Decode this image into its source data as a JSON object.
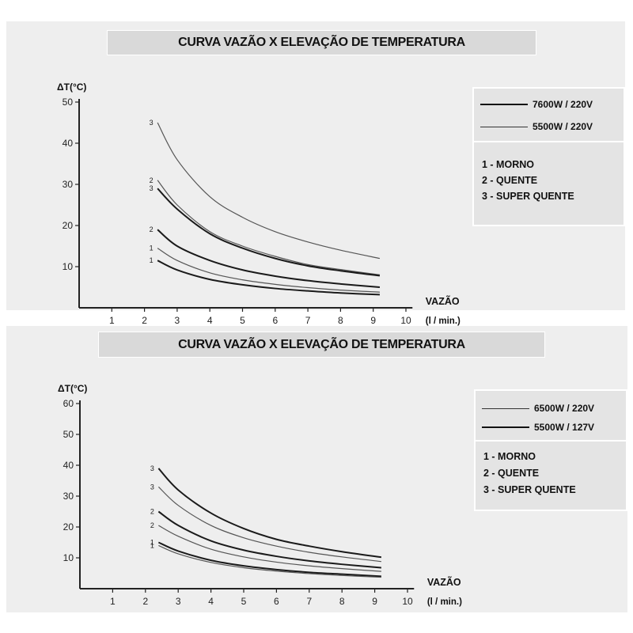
{
  "chart_data": [
    {
      "type": "line",
      "title": "CURVA VAZÃO X ELEVAÇÃO DE TEMPERATURA",
      "ylabel": "ΔT(°C)",
      "xlabel": "VAZÃO",
      "xlabel_unit": "(l / min.)",
      "xlim": [
        0,
        10
      ],
      "ylim": [
        0,
        50
      ],
      "xticks": [
        1,
        2,
        3,
        4,
        5,
        6,
        7,
        8,
        9,
        10
      ],
      "yticks": [
        10,
        20,
        30,
        40,
        50
      ],
      "legend_position": "top-right",
      "legend": [
        {
          "label": "7600W / 220V",
          "style": "thick"
        },
        {
          "label": "5500W / 220V",
          "style": "thin"
        }
      ],
      "legend_key": [
        "1 - MORNO",
        "2 - QUENTE",
        "3 - SUPER QUENTE"
      ],
      "series": [
        {
          "curve": "3",
          "style": "thin",
          "x": [
            2.4,
            3,
            4,
            5,
            6,
            7,
            8,
            9.2
          ],
          "y": [
            45,
            36,
            27,
            22,
            18.5,
            16,
            14,
            12
          ]
        },
        {
          "curve": "2",
          "style": "thin",
          "x": [
            2.4,
            3,
            4,
            5,
            6,
            7,
            8,
            9.2
          ],
          "y": [
            31,
            25,
            18.5,
            15,
            12.5,
            10.5,
            9.3,
            8
          ]
        },
        {
          "curve": "3",
          "style": "thick",
          "x": [
            2.4,
            3,
            4,
            5,
            6,
            7,
            8,
            9.2
          ],
          "y": [
            29,
            24,
            18,
            14.5,
            12,
            10.2,
            9,
            7.8
          ]
        },
        {
          "curve": "2",
          "style": "thick",
          "x": [
            2.4,
            3,
            4,
            5,
            6,
            7,
            8,
            9.2
          ],
          "y": [
            19,
            15,
            11.5,
            9.2,
            7.7,
            6.6,
            5.8,
            5
          ]
        },
        {
          "curve": "1",
          "style": "thin",
          "x": [
            2.4,
            3,
            4,
            5,
            6,
            7,
            8,
            9.2
          ],
          "y": [
            14.5,
            11.5,
            8.5,
            6.8,
            5.7,
            4.9,
            4.3,
            3.8
          ]
        },
        {
          "curve": "1",
          "style": "thick",
          "x": [
            2.4,
            3,
            4,
            5,
            6,
            7,
            8,
            9.2
          ],
          "y": [
            11.5,
            9.2,
            6.9,
            5.6,
            4.7,
            4.1,
            3.6,
            3.2
          ]
        }
      ]
    },
    {
      "type": "line",
      "title": "CURVA VAZÃO X ELEVAÇÃO DE TEMPERATURA",
      "ylabel": "ΔT(°C)",
      "xlabel": "VAZÃO",
      "xlabel_unit": "(l / min.)",
      "xlim": [
        0,
        10
      ],
      "ylim": [
        0,
        60
      ],
      "xticks": [
        1,
        2,
        3,
        4,
        5,
        6,
        7,
        8,
        9,
        10
      ],
      "yticks": [
        10,
        20,
        30,
        40,
        50,
        60
      ],
      "legend_position": "top-right",
      "legend": [
        {
          "label": "6500W / 220V",
          "style": "thin"
        },
        {
          "label": "5500W / 127V",
          "style": "thick"
        }
      ],
      "legend_key": [
        "1 - MORNO",
        "2 - QUENTE",
        "3 - SUPER QUENTE"
      ],
      "series": [
        {
          "curve": "3",
          "style": "thick",
          "x": [
            2.4,
            3,
            4,
            5,
            6,
            7,
            8,
            9.2
          ],
          "y": [
            39,
            32,
            24.5,
            19.5,
            16,
            13.8,
            12,
            10.2
          ]
        },
        {
          "curve": "3",
          "style": "thin",
          "x": [
            2.4,
            3,
            4,
            5,
            6,
            7,
            8,
            9.2
          ],
          "y": [
            33,
            27,
            20.5,
            16.5,
            13.8,
            11.8,
            10.3,
            8.8
          ]
        },
        {
          "curve": "2",
          "style": "thick",
          "x": [
            2.4,
            3,
            4,
            5,
            6,
            7,
            8,
            9.2
          ],
          "y": [
            25,
            20.5,
            15.5,
            12.5,
            10.5,
            9,
            7.9,
            6.8
          ]
        },
        {
          "curve": "2",
          "style": "thin",
          "x": [
            2.4,
            3,
            4,
            5,
            6,
            7,
            8,
            9.2
          ],
          "y": [
            20.5,
            17,
            12.8,
            10.3,
            8.6,
            7.4,
            6.5,
            5.6
          ]
        },
        {
          "curve": "1",
          "style": "thick",
          "x": [
            2.4,
            3,
            4,
            5,
            6,
            7,
            8,
            9.2
          ],
          "y": [
            15,
            12.2,
            9.2,
            7.4,
            6.2,
            5.3,
            4.7,
            4
          ]
        },
        {
          "curve": "1",
          "style": "thin",
          "x": [
            2.4,
            3,
            4,
            5,
            6,
            7,
            8,
            9.2
          ],
          "y": [
            14,
            11.3,
            8.5,
            6.8,
            5.7,
            4.9,
            4.3,
            3.7
          ]
        }
      ]
    }
  ]
}
